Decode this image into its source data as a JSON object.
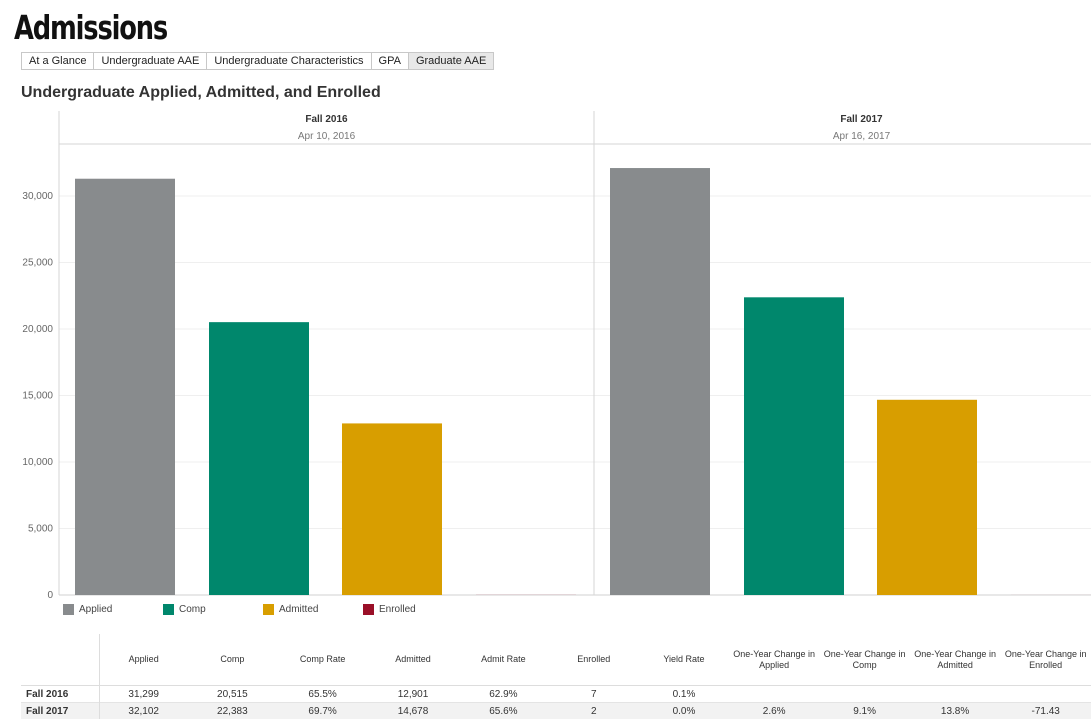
{
  "page": {
    "title": "Admissions"
  },
  "tabs": [
    {
      "label": "At a Glance",
      "active": false
    },
    {
      "label": "Undergraduate AAE",
      "active": false
    },
    {
      "label": "Undergraduate Characteristics",
      "active": false
    },
    {
      "label": "GPA",
      "active": false
    },
    {
      "label": "Graduate AAE",
      "active": true
    }
  ],
  "chart_data": {
    "type": "bar",
    "title": "Undergraduate Applied, Admitted, and Enrolled",
    "ylim": [
      0,
      33750
    ],
    "yticks": [
      0,
      5000,
      10000,
      15000,
      20000,
      25000,
      30000
    ],
    "ytick_labels": [
      "0",
      "5,000",
      "10,000",
      "15,000",
      "20,000",
      "25,000",
      "30,000"
    ],
    "grid": true,
    "legend_position": "bottom-left",
    "panels": [
      {
        "title": "Fall 2016",
        "subtitle": "Apr 10, 2016",
        "values": [
          31299,
          20515,
          12901,
          7
        ]
      },
      {
        "title": "Fall 2017",
        "subtitle": "Apr 16, 2017",
        "values": [
          32102,
          22383,
          14678,
          2
        ]
      }
    ],
    "series": [
      {
        "name": "Applied",
        "color": "#888b8d"
      },
      {
        "name": "Comp",
        "color": "#00876c"
      },
      {
        "name": "Admitted",
        "color": "#d89e00"
      },
      {
        "name": "Enrolled",
        "color": "#9a0f28"
      }
    ]
  },
  "table": {
    "columns": [
      "Applied",
      "Comp",
      "Comp Rate",
      "Admitted",
      "Admit Rate",
      "Enrolled",
      "Yield Rate",
      "One-Year Change in Applied",
      "One-Year Change in Comp",
      "One-Year Change in Admitted",
      "One-Year Change in Enrolled"
    ],
    "rows": [
      {
        "label": "Fall 2016",
        "cells": [
          "31,299",
          "20,515",
          "65.5%",
          "12,901",
          "62.9%",
          "7",
          "0.1%",
          "",
          "",
          "",
          ""
        ]
      },
      {
        "label": "Fall 2017",
        "cells": [
          "32,102",
          "22,383",
          "69.7%",
          "14,678",
          "65.6%",
          "2",
          "0.0%",
          "2.6%",
          "9.1%",
          "13.8%",
          "-71.43"
        ]
      }
    ]
  }
}
